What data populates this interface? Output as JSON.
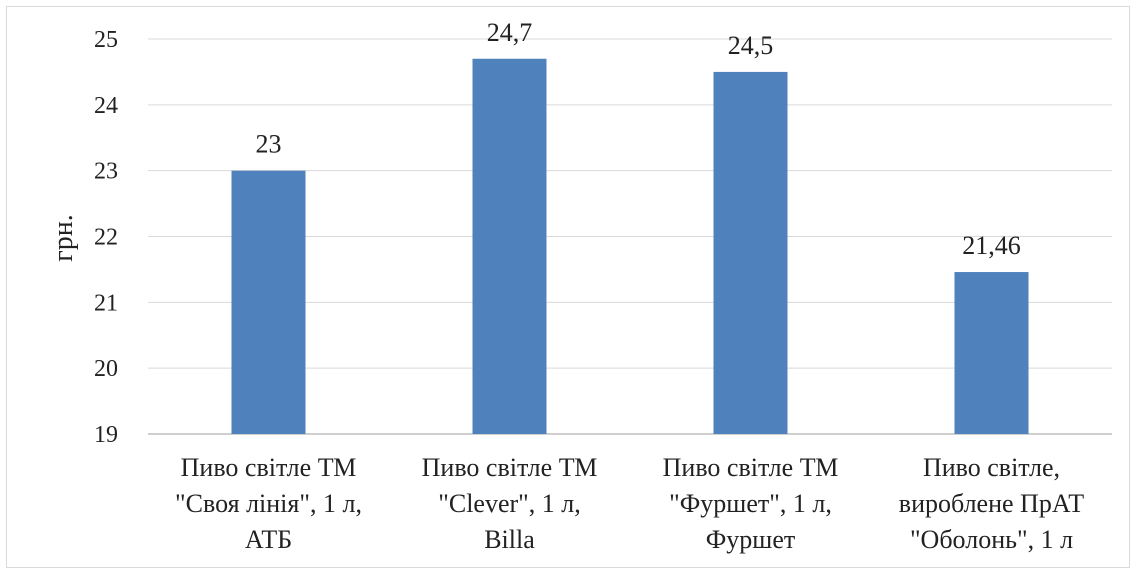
{
  "chart_data": {
    "type": "bar",
    "categories": [
      [
        "Пиво світле ТМ",
        "\"Своя лінія\", 1 л,",
        "АТБ"
      ],
      [
        "Пиво світле ТМ",
        "\"Clever\", 1 л,",
        "Billa"
      ],
      [
        "Пиво світле ТМ",
        "\"Фуршет\", 1 л,",
        "Фуршет"
      ],
      [
        "Пиво світле,",
        "вироблене ПрАТ",
        "\"Оболонь\", 1 л"
      ]
    ],
    "values": [
      23,
      24.7,
      24.5,
      21.46
    ],
    "data_labels": [
      "23",
      "24,7",
      "24,5",
      "21,46"
    ],
    "ylabel": "грн.",
    "ylim": [
      19,
      25
    ],
    "yticks": [
      19,
      20,
      21,
      22,
      23,
      24,
      25
    ],
    "grid": true,
    "bar_color": "#4f81bd",
    "grid_color": "#d9d9d9"
  }
}
